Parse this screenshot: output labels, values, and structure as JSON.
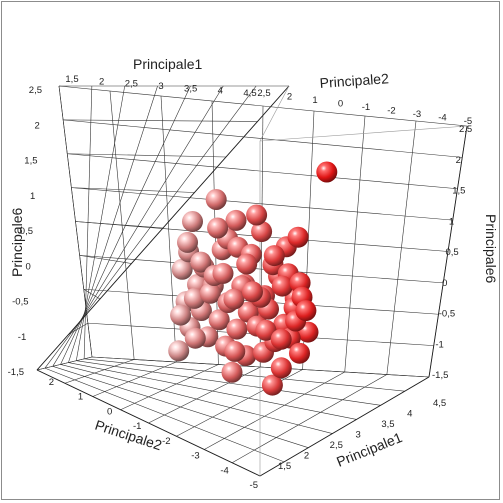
{
  "chart_data": {
    "type": "scatter3d",
    "title": "",
    "axes": {
      "x": {
        "label": "Principale1",
        "range": [
          1.5,
          4.5
        ],
        "ticks": [
          "1,5",
          "2",
          "2,5",
          "3",
          "3,5",
          "4",
          "4,5"
        ]
      },
      "y": {
        "label": "Principale2",
        "range": [
          -5,
          2.5
        ],
        "ticks": [
          "2,5",
          "2",
          "1",
          "0",
          "-1",
          "-2",
          "-3",
          "-4",
          "-5"
        ],
        "ticks_front": [
          "2",
          "1",
          "0",
          "-1",
          "-2",
          "-3",
          "-4",
          "-5"
        ]
      },
      "z": {
        "label": "Principale6",
        "range": [
          -1.5,
          2.5
        ],
        "ticks": [
          "2,5",
          "2",
          "1,5",
          "1",
          "0,5",
          "0",
          "-0,5",
          "-1",
          "-1,5"
        ]
      },
      "x_front_ticks": [
        "4,5",
        "4",
        "3,5",
        "3",
        "2,5",
        "2",
        "1,5"
      ]
    },
    "grid": true,
    "color_scale": {
      "low": "#c89595",
      "high": "#e01010",
      "by": "Principale2"
    },
    "points": [
      {
        "x": 3.0,
        "y": -4.8,
        "z": 2.0
      },
      {
        "x": 3.1,
        "y": -2.0,
        "z": 1.2
      },
      {
        "x": 2.9,
        "y": -3.6,
        "z": 0.9
      },
      {
        "x": 2.6,
        "y": -3.0,
        "z": 0.7
      },
      {
        "x": 2.2,
        "y": 0.0,
        "z": 1.3
      },
      {
        "x": 2.1,
        "y": 1.0,
        "z": 0.9
      },
      {
        "x": 2.3,
        "y": -0.5,
        "z": 0.7
      },
      {
        "x": 2.5,
        "y": -1.0,
        "z": 0.6
      },
      {
        "x": 2.4,
        "y": -1.5,
        "z": 0.5
      },
      {
        "x": 2.7,
        "y": -2.5,
        "z": 0.4
      },
      {
        "x": 2.9,
        "y": -3.2,
        "z": 0.3
      },
      {
        "x": 3.2,
        "y": -3.8,
        "z": 0.2
      },
      {
        "x": 2.0,
        "y": 1.2,
        "z": 0.4
      },
      {
        "x": 2.2,
        "y": 0.5,
        "z": 0.2
      },
      {
        "x": 2.4,
        "y": 0.0,
        "z": 0.1
      },
      {
        "x": 2.6,
        "y": -1.2,
        "z": 0.0
      },
      {
        "x": 2.8,
        "y": -2.2,
        "z": -0.1
      },
      {
        "x": 3.0,
        "y": -3.0,
        "z": 0.1
      },
      {
        "x": 3.3,
        "y": -3.6,
        "z": -0.2
      },
      {
        "x": 3.5,
        "y": -4.0,
        "z": 0.0
      },
      {
        "x": 1.9,
        "y": 1.5,
        "z": 0.1
      },
      {
        "x": 2.1,
        "y": 0.8,
        "z": -0.1
      },
      {
        "x": 2.3,
        "y": 0.2,
        "z": -0.2
      },
      {
        "x": 2.5,
        "y": -0.6,
        "z": -0.3
      },
      {
        "x": 2.7,
        "y": -1.5,
        "z": -0.4
      },
      {
        "x": 2.9,
        "y": -2.4,
        "z": -0.3
      },
      {
        "x": 3.1,
        "y": -3.1,
        "z": -0.5
      },
      {
        "x": 3.4,
        "y": -3.7,
        "z": -0.4
      },
      {
        "x": 3.6,
        "y": -4.2,
        "z": -0.2
      },
      {
        "x": 2.0,
        "y": 1.3,
        "z": -0.4
      },
      {
        "x": 2.2,
        "y": 0.6,
        "z": -0.5
      },
      {
        "x": 2.4,
        "y": -0.2,
        "z": -0.6
      },
      {
        "x": 2.6,
        "y": -1.0,
        "z": -0.7
      },
      {
        "x": 2.8,
        "y": -1.9,
        "z": -0.6
      },
      {
        "x": 3.0,
        "y": -2.7,
        "z": -0.8
      },
      {
        "x": 3.2,
        "y": -3.4,
        "z": -0.7
      },
      {
        "x": 3.5,
        "y": -3.9,
        "z": -0.9
      },
      {
        "x": 2.1,
        "y": 1.1,
        "z": -0.8
      },
      {
        "x": 2.3,
        "y": 0.3,
        "z": -0.9
      },
      {
        "x": 2.5,
        "y": -0.5,
        "z": -1.0
      },
      {
        "x": 2.7,
        "y": -1.4,
        "z": -1.1
      },
      {
        "x": 2.9,
        "y": -2.2,
        "z": -1.0
      },
      {
        "x": 3.1,
        "y": -3.0,
        "z": -1.2
      },
      {
        "x": 2.0,
        "y": 1.6,
        "z": -1.2
      },
      {
        "x": 2.6,
        "y": -0.8,
        "z": -1.4
      },
      {
        "x": 3.0,
        "y": -2.6,
        "z": -1.5
      },
      {
        "x": 2.8,
        "y": -0.3,
        "z": 0.9
      },
      {
        "x": 2.2,
        "y": -0.8,
        "z": 1.0
      },
      {
        "x": 3.3,
        "y": -2.8,
        "z": 0.6
      },
      {
        "x": 2.6,
        "y": -2.0,
        "z": 0.9
      },
      {
        "x": 2.4,
        "y": 0.8,
        "z": -0.3
      },
      {
        "x": 3.2,
        "y": -2.2,
        "z": -0.1
      },
      {
        "x": 2.1,
        "y": -0.2,
        "z": 0.5
      },
      {
        "x": 2.9,
        "y": -1.0,
        "z": -0.2
      },
      {
        "x": 3.4,
        "y": -2.5,
        "z": -0.6
      },
      {
        "x": 2.3,
        "y": 1.4,
        "z": -0.6
      },
      {
        "x": 2.7,
        "y": -3.4,
        "z": -0.1
      },
      {
        "x": 3.1,
        "y": -1.6,
        "z": 0.4
      },
      {
        "x": 2.5,
        "y": 0.5,
        "z": 0.3
      },
      {
        "x": 3.6,
        "y": -3.2,
        "z": -0.7
      },
      {
        "x": 2.2,
        "y": -1.8,
        "z": -0.4
      },
      {
        "x": 2.8,
        "y": 0.6,
        "z": -0.9
      },
      {
        "x": 3.3,
        "y": -1.2,
        "z": -1.0
      },
      {
        "x": 2.4,
        "y": -2.6,
        "z": 0.2
      },
      {
        "x": 3.0,
        "y": -0.6,
        "z": 0.2
      },
      {
        "x": 2.0,
        "y": 0.2,
        "z": -0.1
      },
      {
        "x": 3.5,
        "y": -2.0,
        "z": 0.0
      },
      {
        "x": 2.6,
        "y": 1.0,
        "z": 0.6
      },
      {
        "x": 2.9,
        "y": -4.0,
        "z": -0.6
      },
      {
        "x": 2.3,
        "y": -1.2,
        "z": 0.0
      }
    ]
  }
}
